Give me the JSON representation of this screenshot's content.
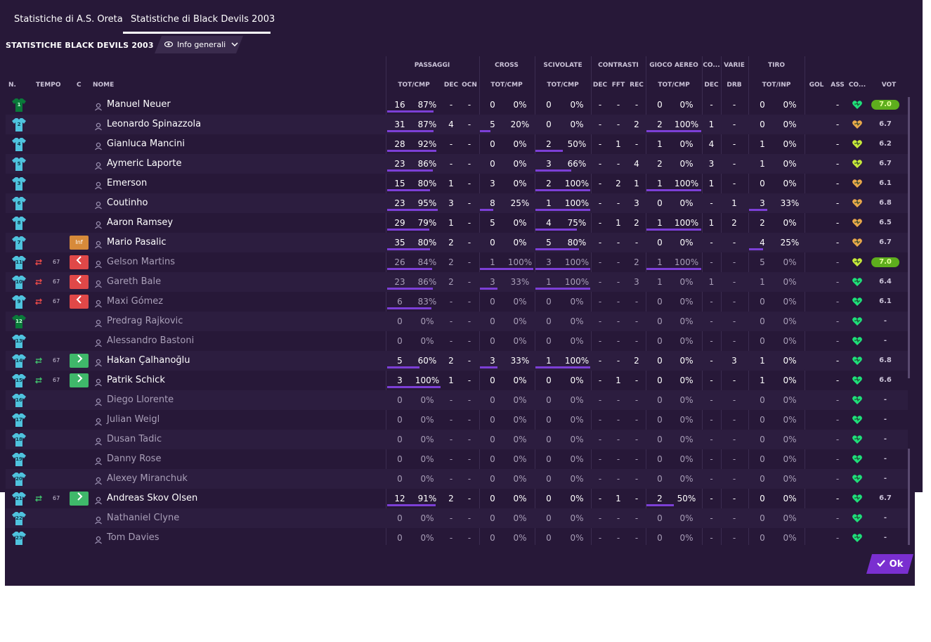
{
  "tabs": [
    "Statistiche di A.S. Oreta",
    "Statistiche di Black Devils 2003"
  ],
  "page_title": "STATISTICHE BLACK DEVILS 2003",
  "view_dropdown": "Info generali",
  "groups": [
    "PASSAGGI",
    "CROSS",
    "SCIVOLATE",
    "CONTRASTI",
    "GIOCO AEREO",
    "CO...",
    "VARIE",
    "TIRO"
  ],
  "headers": {
    "num": "N.",
    "tempo": "TEMPO",
    "c": "C",
    "nome": "NOME",
    "pass_totcmp": "TOT/CMP",
    "pass_dec": "DEC",
    "pass_ocn": "OCN",
    "cross_totcmp": "TOT/CMP",
    "sciv_totcmp": "TOT/CMP",
    "contr_dec": "DEC",
    "contr_fft": "FFT",
    "contr_rec": "REC",
    "aereo_totcmp": "TOT/CMP",
    "co_dec": "DEC",
    "varie_drb": "DRB",
    "tiro_totinp": "TOT/INP",
    "gol": "GOL",
    "ass": "ASS",
    "co": "CO...",
    "vot": "VOT"
  },
  "players": [
    {
      "num": "1",
      "gk": true,
      "sub": "",
      "min": "",
      "c": "",
      "name": "Manuel Neuer",
      "dim": false,
      "pass": [
        "16",
        "87%"
      ],
      "pdec": "-",
      "pocn": "-",
      "cross": [
        "0",
        "0%"
      ],
      "sciv": [
        "0",
        "0%"
      ],
      "cdec": "-",
      "fft": "-",
      "rec": "-",
      "aereo": [
        "0",
        "0%"
      ],
      "codec": "-",
      "drb": "-",
      "tiro": [
        "0",
        "0%"
      ],
      "gol": "",
      "ass": "-",
      "mood": "green",
      "vot": "7.0",
      "best": true
    },
    {
      "num": "2",
      "gk": false,
      "sub": "",
      "min": "",
      "c": "",
      "name": "Leonardo Spinazzola",
      "dim": false,
      "pass": [
        "31",
        "87%"
      ],
      "pdec": "4",
      "pocn": "-",
      "cross": [
        "5",
        "20%"
      ],
      "sciv": [
        "0",
        "0%"
      ],
      "cdec": "-",
      "fft": "-",
      "rec": "2",
      "aereo": [
        "2",
        "100%"
      ],
      "codec": "1",
      "drb": "-",
      "tiro": [
        "0",
        "0%"
      ],
      "gol": "",
      "ass": "-",
      "mood": "orange",
      "vot": "6.7",
      "best": false
    },
    {
      "num": "4",
      "gk": false,
      "sub": "",
      "min": "",
      "c": "",
      "name": "Gianluca Mancini",
      "dim": false,
      "pass": [
        "28",
        "92%"
      ],
      "pdec": "-",
      "pocn": "-",
      "cross": [
        "0",
        "0%"
      ],
      "sciv": [
        "2",
        "50%"
      ],
      "cdec": "-",
      "fft": "1",
      "rec": "-",
      "aereo": [
        "1",
        "0%"
      ],
      "codec": "4",
      "drb": "-",
      "tiro": [
        "1",
        "0%"
      ],
      "gol": "",
      "ass": "-",
      "mood": "yellow",
      "vot": "6.2",
      "best": false
    },
    {
      "num": "5",
      "gk": false,
      "sub": "",
      "min": "",
      "c": "",
      "name": "Aymeric Laporte",
      "dim": false,
      "pass": [
        "23",
        "86%"
      ],
      "pdec": "-",
      "pocn": "-",
      "cross": [
        "0",
        "0%"
      ],
      "sciv": [
        "3",
        "66%"
      ],
      "cdec": "-",
      "fft": "-",
      "rec": "4",
      "aereo": [
        "2",
        "0%"
      ],
      "codec": "3",
      "drb": "-",
      "tiro": [
        "1",
        "0%"
      ],
      "gol": "",
      "ass": "-",
      "mood": "yellow",
      "vot": "6.7",
      "best": false
    },
    {
      "num": "3",
      "gk": false,
      "sub": "",
      "min": "",
      "c": "",
      "name": "Emerson",
      "dim": false,
      "pass": [
        "15",
        "80%"
      ],
      "pdec": "1",
      "pocn": "-",
      "cross": [
        "3",
        "0%"
      ],
      "sciv": [
        "2",
        "100%"
      ],
      "cdec": "-",
      "fft": "2",
      "rec": "1",
      "aereo": [
        "1",
        "100%"
      ],
      "codec": "1",
      "drb": "-",
      "tiro": [
        "0",
        "0%"
      ],
      "gol": "",
      "ass": "-",
      "mood": "orange",
      "vot": "6.1",
      "best": false
    },
    {
      "num": "6",
      "gk": false,
      "sub": "",
      "min": "",
      "c": "",
      "name": "Coutinho",
      "dim": false,
      "pass": [
        "23",
        "95%"
      ],
      "pdec": "3",
      "pocn": "-",
      "cross": [
        "8",
        "25%"
      ],
      "sciv": [
        "1",
        "100%"
      ],
      "cdec": "-",
      "fft": "-",
      "rec": "3",
      "aereo": [
        "0",
        "0%"
      ],
      "codec": "-",
      "drb": "1",
      "tiro": [
        "3",
        "33%"
      ],
      "gol": "",
      "ass": "-",
      "mood": "orange",
      "vot": "6.8",
      "best": false
    },
    {
      "num": "8",
      "gk": false,
      "sub": "",
      "min": "",
      "c": "",
      "name": "Aaron Ramsey",
      "dim": false,
      "pass": [
        "29",
        "79%"
      ],
      "pdec": "1",
      "pocn": "-",
      "cross": [
        "5",
        "0%"
      ],
      "sciv": [
        "4",
        "75%"
      ],
      "cdec": "-",
      "fft": "1",
      "rec": "2",
      "aereo": [
        "1",
        "100%"
      ],
      "codec": "1",
      "drb": "2",
      "tiro": [
        "2",
        "0%"
      ],
      "gol": "",
      "ass": "-",
      "mood": "orange",
      "vot": "6.5",
      "best": false
    },
    {
      "num": "7",
      "gk": false,
      "sub": "",
      "min": "",
      "c": "Inf",
      "name": "Mario Pasalic",
      "dim": false,
      "pass": [
        "35",
        "80%"
      ],
      "pdec": "2",
      "pocn": "-",
      "cross": [
        "0",
        "0%"
      ],
      "sciv": [
        "5",
        "80%"
      ],
      "cdec": "-",
      "fft": "-",
      "rec": "-",
      "aereo": [
        "0",
        "0%"
      ],
      "codec": "-",
      "drb": "-",
      "tiro": [
        "4",
        "25%"
      ],
      "gol": "",
      "ass": "-",
      "mood": "orange",
      "vot": "6.7",
      "best": false
    },
    {
      "num": "11",
      "gk": false,
      "sub": "out",
      "min": "67",
      "c": "out",
      "name": "Gelson Martins",
      "dim": true,
      "pass": [
        "26",
        "84%"
      ],
      "pdec": "2",
      "pocn": "-",
      "cross": [
        "1",
        "100%"
      ],
      "sciv": [
        "3",
        "100%"
      ],
      "cdec": "-",
      "fft": "-",
      "rec": "2",
      "aereo": [
        "1",
        "100%"
      ],
      "codec": "-",
      "drb": "-",
      "tiro": [
        "5",
        "0%"
      ],
      "gol": "",
      "ass": "-",
      "mood": "yellow",
      "vot": "7.0",
      "best": true
    },
    {
      "num": "10",
      "gk": false,
      "sub": "out",
      "min": "67",
      "c": "out",
      "name": "Gareth Bale",
      "dim": true,
      "pass": [
        "23",
        "86%"
      ],
      "pdec": "2",
      "pocn": "-",
      "cross": [
        "3",
        "33%"
      ],
      "sciv": [
        "1",
        "100%"
      ],
      "cdec": "-",
      "fft": "-",
      "rec": "3",
      "aereo": [
        "1",
        "0%"
      ],
      "codec": "1",
      "drb": "-",
      "tiro": [
        "1",
        "0%"
      ],
      "gol": "",
      "ass": "-",
      "mood": "green",
      "vot": "6.4",
      "best": false
    },
    {
      "num": "9",
      "gk": false,
      "sub": "out",
      "min": "67",
      "c": "out",
      "name": "Maxi Gómez",
      "dim": true,
      "pass": [
        "6",
        "83%"
      ],
      "pdec": "-",
      "pocn": "-",
      "cross": [
        "0",
        "0%"
      ],
      "sciv": [
        "0",
        "0%"
      ],
      "cdec": "-",
      "fft": "-",
      "rec": "-",
      "aereo": [
        "0",
        "0%"
      ],
      "codec": "-",
      "drb": "-",
      "tiro": [
        "0",
        "0%"
      ],
      "gol": "",
      "ass": "-",
      "mood": "green",
      "vot": "6.1",
      "best": false
    },
    {
      "num": "12",
      "gk": true,
      "sub": "",
      "min": "",
      "c": "",
      "name": "Predrag Rajkovic",
      "dim": true,
      "pass": [
        "0",
        "0%"
      ],
      "pdec": "-",
      "pocn": "-",
      "cross": [
        "0",
        "0%"
      ],
      "sciv": [
        "0",
        "0%"
      ],
      "cdec": "-",
      "fft": "-",
      "rec": "-",
      "aereo": [
        "0",
        "0%"
      ],
      "codec": "-",
      "drb": "-",
      "tiro": [
        "0",
        "0%"
      ],
      "gol": "",
      "ass": "-",
      "mood": "green",
      "vot": "-",
      "best": false
    },
    {
      "num": "13",
      "gk": false,
      "sub": "",
      "min": "",
      "c": "",
      "name": "Alessandro Bastoni",
      "dim": true,
      "pass": [
        "0",
        "0%"
      ],
      "pdec": "-",
      "pocn": "-",
      "cross": [
        "0",
        "0%"
      ],
      "sciv": [
        "0",
        "0%"
      ],
      "cdec": "-",
      "fft": "-",
      "rec": "-",
      "aereo": [
        "0",
        "0%"
      ],
      "codec": "-",
      "drb": "-",
      "tiro": [
        "0",
        "0%"
      ],
      "gol": "",
      "ass": "-",
      "mood": "green",
      "vot": "-",
      "best": false
    },
    {
      "num": "14",
      "gk": false,
      "sub": "in",
      "min": "67",
      "c": "in",
      "name": "Hakan Çalhanoğlu",
      "dim": false,
      "pass": [
        "5",
        "60%"
      ],
      "pdec": "2",
      "pocn": "-",
      "cross": [
        "3",
        "33%"
      ],
      "sciv": [
        "1",
        "100%"
      ],
      "cdec": "-",
      "fft": "-",
      "rec": "2",
      "aereo": [
        "0",
        "0%"
      ],
      "codec": "-",
      "drb": "3",
      "tiro": [
        "1",
        "0%"
      ],
      "gol": "",
      "ass": "-",
      "mood": "green",
      "vot": "6.8",
      "best": false
    },
    {
      "num": "15",
      "gk": false,
      "sub": "in",
      "min": "67",
      "c": "in",
      "name": "Patrik Schick",
      "dim": false,
      "pass": [
        "3",
        "100%"
      ],
      "pdec": "1",
      "pocn": "-",
      "cross": [
        "0",
        "0%"
      ],
      "sciv": [
        "0",
        "0%"
      ],
      "cdec": "-",
      "fft": "1",
      "rec": "-",
      "aereo": [
        "0",
        "0%"
      ],
      "codec": "-",
      "drb": "-",
      "tiro": [
        "1",
        "0%"
      ],
      "gol": "",
      "ass": "-",
      "mood": "green",
      "vot": "6.6",
      "best": false
    },
    {
      "num": "16",
      "gk": false,
      "sub": "",
      "min": "",
      "c": "",
      "name": "Diego Llorente",
      "dim": true,
      "pass": [
        "0",
        "0%"
      ],
      "pdec": "-",
      "pocn": "-",
      "cross": [
        "0",
        "0%"
      ],
      "sciv": [
        "0",
        "0%"
      ],
      "cdec": "-",
      "fft": "-",
      "rec": "-",
      "aereo": [
        "0",
        "0%"
      ],
      "codec": "-",
      "drb": "-",
      "tiro": [
        "0",
        "0%"
      ],
      "gol": "",
      "ass": "-",
      "mood": "green",
      "vot": "-",
      "best": false
    },
    {
      "num": "17",
      "gk": false,
      "sub": "",
      "min": "",
      "c": "",
      "name": "Julian Weigl",
      "dim": true,
      "pass": [
        "0",
        "0%"
      ],
      "pdec": "-",
      "pocn": "-",
      "cross": [
        "0",
        "0%"
      ],
      "sciv": [
        "0",
        "0%"
      ],
      "cdec": "-",
      "fft": "-",
      "rec": "-",
      "aereo": [
        "0",
        "0%"
      ],
      "codec": "-",
      "drb": "-",
      "tiro": [
        "0",
        "0%"
      ],
      "gol": "",
      "ass": "-",
      "mood": "green",
      "vot": "-",
      "best": false
    },
    {
      "num": "18",
      "gk": false,
      "sub": "",
      "min": "",
      "c": "",
      "name": "Dusan Tadic",
      "dim": true,
      "pass": [
        "0",
        "0%"
      ],
      "pdec": "-",
      "pocn": "-",
      "cross": [
        "0",
        "0%"
      ],
      "sciv": [
        "0",
        "0%"
      ],
      "cdec": "-",
      "fft": "-",
      "rec": "-",
      "aereo": [
        "0",
        "0%"
      ],
      "codec": "-",
      "drb": "-",
      "tiro": [
        "0",
        "0%"
      ],
      "gol": "",
      "ass": "-",
      "mood": "green",
      "vot": "-",
      "best": false
    },
    {
      "num": "19",
      "gk": false,
      "sub": "",
      "min": "",
      "c": "",
      "name": "Danny Rose",
      "dim": true,
      "pass": [
        "0",
        "0%"
      ],
      "pdec": "-",
      "pocn": "-",
      "cross": [
        "0",
        "0%"
      ],
      "sciv": [
        "0",
        "0%"
      ],
      "cdec": "-",
      "fft": "-",
      "rec": "-",
      "aereo": [
        "0",
        "0%"
      ],
      "codec": "-",
      "drb": "-",
      "tiro": [
        "0",
        "0%"
      ],
      "gol": "",
      "ass": "-",
      "mood": "green",
      "vot": "-",
      "best": false
    },
    {
      "num": "20",
      "gk": false,
      "sub": "",
      "min": "",
      "c": "",
      "name": "Alexey Miranchuk",
      "dim": true,
      "pass": [
        "0",
        "0%"
      ],
      "pdec": "-",
      "pocn": "-",
      "cross": [
        "0",
        "0%"
      ],
      "sciv": [
        "0",
        "0%"
      ],
      "cdec": "-",
      "fft": "-",
      "rec": "-",
      "aereo": [
        "0",
        "0%"
      ],
      "codec": "-",
      "drb": "-",
      "tiro": [
        "0",
        "0%"
      ],
      "gol": "",
      "ass": "-",
      "mood": "green",
      "vot": "-",
      "best": false
    },
    {
      "num": "21",
      "gk": false,
      "sub": "in",
      "min": "67",
      "c": "in",
      "name": "Andreas Skov Olsen",
      "dim": false,
      "pass": [
        "12",
        "91%"
      ],
      "pdec": "2",
      "pocn": "-",
      "cross": [
        "0",
        "0%"
      ],
      "sciv": [
        "0",
        "0%"
      ],
      "cdec": "-",
      "fft": "1",
      "rec": "-",
      "aereo": [
        "2",
        "50%"
      ],
      "codec": "-",
      "drb": "-",
      "tiro": [
        "0",
        "0%"
      ],
      "gol": "",
      "ass": "-",
      "mood": "green",
      "vot": "6.7",
      "best": false
    },
    {
      "num": "22",
      "gk": false,
      "sub": "",
      "min": "",
      "c": "",
      "name": "Nathaniel Clyne",
      "dim": true,
      "pass": [
        "0",
        "0%"
      ],
      "pdec": "-",
      "pocn": "-",
      "cross": [
        "0",
        "0%"
      ],
      "sciv": [
        "0",
        "0%"
      ],
      "cdec": "-",
      "fft": "-",
      "rec": "-",
      "aereo": [
        "0",
        "0%"
      ],
      "codec": "-",
      "drb": "-",
      "tiro": [
        "0",
        "0%"
      ],
      "gol": "",
      "ass": "-",
      "mood": "green",
      "vot": "-",
      "best": false
    },
    {
      "num": "23",
      "gk": false,
      "sub": "",
      "min": "",
      "c": "",
      "name": "Tom Davies",
      "dim": true,
      "pass": [
        "0",
        "0%"
      ],
      "pdec": "-",
      "pocn": "-",
      "cross": [
        "0",
        "0%"
      ],
      "sciv": [
        "0",
        "0%"
      ],
      "cdec": "-",
      "fft": "-",
      "rec": "-",
      "aereo": [
        "0",
        "0%"
      ],
      "codec": "-",
      "drb": "-",
      "tiro": [
        "0",
        "0%"
      ],
      "gol": "",
      "ass": "-",
      "mood": "green",
      "vot": "-",
      "best": false
    }
  ],
  "ok_label": "Ok",
  "colors": {
    "bg": "#271838",
    "accent": "#7c3fd6",
    "out": "#e04848",
    "in": "#3fb86a",
    "inf": "#d78a3a",
    "best_rating": "#5eae1d"
  }
}
